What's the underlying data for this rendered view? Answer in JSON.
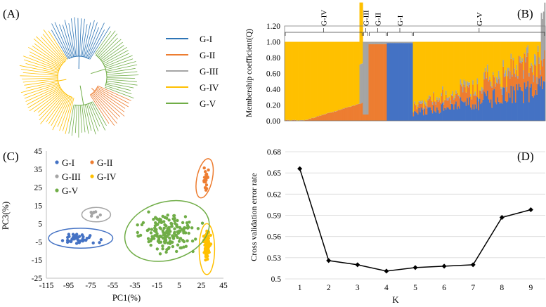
{
  "figure": {
    "panels": {
      "a": "(A)",
      "b": "(B)",
      "c": "(C)",
      "d": "(D)"
    },
    "colors": {
      "G-I": "#4472c4",
      "G-II": "#ed7d31",
      "G-III": "#a5a5a5",
      "G-IV": "#ffc000",
      "G-V": "#70ad47"
    }
  },
  "chart_data": [
    {
      "id": "A",
      "type": "circular-tree",
      "legend": [
        {
          "label": "G-I",
          "color": "#2e75b6"
        },
        {
          "label": "G-II",
          "color": "#ed7d31"
        },
        {
          "label": "G-III",
          "color": "#a5a5a5"
        },
        {
          "label": "G-IV",
          "color": "#ffc000"
        },
        {
          "label": "G-V",
          "color": "#70ad47"
        }
      ],
      "clades": [
        {
          "group": "G-I",
          "share": 0.18
        },
        {
          "group": "G-V",
          "share": 0.22
        },
        {
          "group": "G-II",
          "share": 0.1
        },
        {
          "group": "G-V",
          "share": 0.12
        },
        {
          "group": "G-IV",
          "share": 0.38
        }
      ]
    },
    {
      "id": "B",
      "type": "stacked-bar",
      "title": "",
      "ylabel": "Membership coefficient(Q)",
      "ylim": [
        0,
        1.2
      ],
      "yticks": [
        "0.00",
        "0.20",
        "0.40",
        "0.60",
        "0.80",
        "1.00",
        "1.20"
      ],
      "groups": [
        {
          "label": "G-IV",
          "share": 0.3
        },
        {
          "label": "G-III",
          "share": 0.022
        },
        {
          "label": "G-II",
          "share": 0.07
        },
        {
          "label": "G-I",
          "share": 0.1
        },
        {
          "label": "G-V",
          "share": 0.508
        }
      ],
      "series_order": [
        "G-I",
        "G-II",
        "G-III",
        "G-IV",
        "G-V"
      ]
    },
    {
      "id": "C",
      "type": "scatter",
      "xlabel": "PC1(%)",
      "ylabel": "PC3(%)",
      "xlim": [
        -115,
        45
      ],
      "ylim": [
        -25,
        45
      ],
      "xticks": [
        -115,
        -95,
        -75,
        -55,
        -35,
        -15,
        5,
        25,
        45
      ],
      "yticks": [
        45,
        35,
        25,
        15,
        5,
        -5,
        -15,
        -25
      ],
      "legend": [
        {
          "label": "G-I",
          "color": "#4472c4"
        },
        {
          "label": "G-II",
          "color": "#ed7d31"
        },
        {
          "label": "G-III",
          "color": "#a5a5a5"
        },
        {
          "label": "G-IV",
          "color": "#ffc000"
        },
        {
          "label": "G-V",
          "color": "#70ad47"
        }
      ],
      "clusters": [
        {
          "group": "G-I",
          "cx": -85,
          "cy": -3,
          "rx": 16,
          "ry": 3.5,
          "n": 40,
          "ellipse": {
            "cx": -84,
            "cy": -3,
            "rx": 29,
            "ry": 5.5,
            "angle": 0
          }
        },
        {
          "group": "G-II",
          "cx": 29,
          "cy": 30,
          "rx": 2.5,
          "ry": 5,
          "n": 22,
          "ellipse": {
            "cx": 28,
            "cy": 30,
            "rx": 7,
            "ry": 11,
            "angle": 12
          }
        },
        {
          "group": "G-III",
          "cx": -73,
          "cy": 10,
          "rx": 6,
          "ry": 1.5,
          "n": 8,
          "ellipse": {
            "cx": -70,
            "cy": 10,
            "rx": 13,
            "ry": 4,
            "angle": 0
          }
        },
        {
          "group": "G-IV",
          "cx": 30,
          "cy": -7,
          "rx": 2.5,
          "ry": 6,
          "n": 80,
          "ellipse": {
            "cx": 30,
            "cy": -9,
            "rx": 7,
            "ry": 14,
            "angle": 0
          }
        },
        {
          "group": "G-V",
          "cx": -5,
          "cy": 0,
          "rx": 22,
          "ry": 9,
          "n": 170,
          "ellipse": {
            "cx": -6,
            "cy": 1,
            "rx": 39,
            "ry": 16,
            "angle": -16
          }
        }
      ]
    },
    {
      "id": "D",
      "type": "line",
      "xlabel": "K",
      "ylabel": "Cross validation error rate",
      "x": [
        1,
        2,
        3,
        4,
        5,
        6,
        7,
        8,
        9
      ],
      "y": [
        0.656,
        0.526,
        0.52,
        0.511,
        0.516,
        0.518,
        0.52,
        0.587,
        0.598
      ],
      "xlim": [
        0.5,
        9.5
      ],
      "ylim": [
        0.5,
        0.68
      ],
      "yticks": [
        "0.5",
        "0.53",
        "0.56",
        "0.59",
        "0.62",
        "0.65",
        "0.68"
      ],
      "grid": true
    }
  ]
}
